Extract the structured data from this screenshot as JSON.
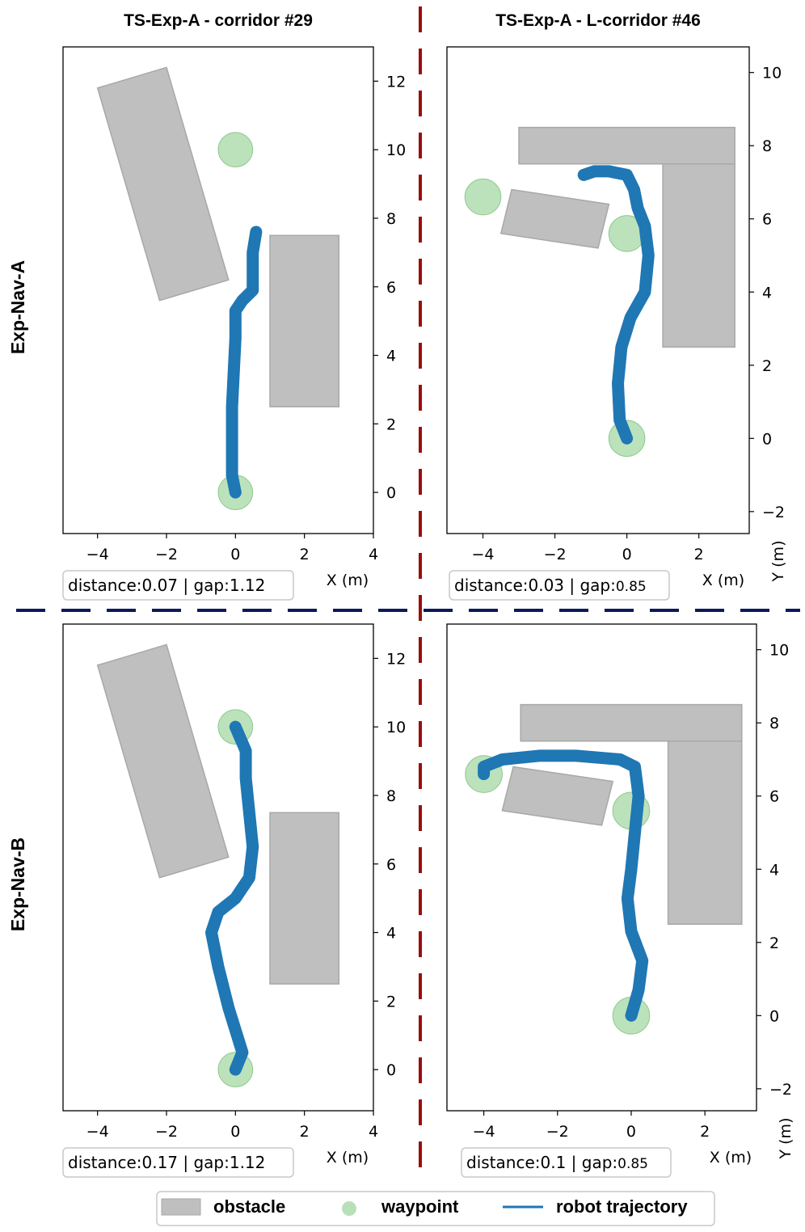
{
  "columns": [
    {
      "title": "TS-Exp-A - corridor #29"
    },
    {
      "title": "TS-Exp-A - L-corridor #46"
    }
  ],
  "rows": [
    {
      "label": "Exp-Nav-A"
    },
    {
      "label": "Exp-Nav-B"
    }
  ],
  "legend": {
    "obstacle": "obstacle",
    "waypoint": "waypoint",
    "trajectory": "robot trajectory"
  },
  "colors": {
    "obstacle_fill": "#bfbfbf",
    "obstacle_edge": "#a8a8a8",
    "waypoint": "#a6d8a6",
    "trajectory": "#1f77b4",
    "vertical_divider": "#9b0d0d",
    "horizontal_divider": "#0a1a5c"
  },
  "chart_data": [
    {
      "type": "scatter",
      "title": "TS-Exp-A - corridor #29",
      "row": "Exp-Nav-A",
      "xlabel": "X (m)",
      "ylabel": "",
      "xlim": [
        -5,
        4
      ],
      "ylim": [
        -1.2,
        13
      ],
      "xticks": [
        -4,
        -2,
        0,
        2,
        4
      ],
      "yticks": [
        0,
        2,
        4,
        6,
        8,
        10,
        12
      ],
      "tick_labels_x": [
        "−4",
        "−2",
        "0",
        "2",
        "4"
      ],
      "tick_labels_y": [
        "0",
        "2",
        "4",
        "6",
        "8",
        "10",
        "12"
      ],
      "metric": "distance:0.07 | gap:1.12",
      "obstacles": [
        [
          [
            -4,
            11.8
          ],
          [
            -2,
            12.4
          ],
          [
            -0.2,
            6.2
          ],
          [
            -2.2,
            5.6
          ]
        ],
        [
          [
            1,
            2.5
          ],
          [
            3,
            2.5
          ],
          [
            3,
            7.5
          ],
          [
            1,
            7.5
          ]
        ]
      ],
      "waypoints": [
        [
          0,
          0
        ],
        [
          0,
          10
        ]
      ],
      "trajectory": [
        [
          0,
          0
        ],
        [
          -0.1,
          0.5
        ],
        [
          -0.1,
          1.5
        ],
        [
          -0.1,
          2.5
        ],
        [
          -0.05,
          3.5
        ],
        [
          0,
          4.5
        ],
        [
          0,
          5.3
        ],
        [
          0.2,
          5.6
        ],
        [
          0.5,
          5.9
        ],
        [
          0.5,
          6.3
        ],
        [
          0.5,
          7
        ],
        [
          0.6,
          7.6
        ]
      ]
    },
    {
      "type": "scatter",
      "title": "TS-Exp-A - L-corridor #46",
      "row": "Exp-Nav-A",
      "xlabel": "X (m)",
      "ylabel": "Y (m)",
      "xlim": [
        -5,
        3.4
      ],
      "ylim": [
        -2.6,
        10.7
      ],
      "xticks": [
        -4,
        -2,
        0,
        2
      ],
      "yticks": [
        -2,
        0,
        2,
        4,
        6,
        8,
        10
      ],
      "tick_labels_x": [
        "−4",
        "−2",
        "0",
        "2"
      ],
      "tick_labels_y": [
        "−2",
        "0",
        "2",
        "4",
        "6",
        "8",
        "10"
      ],
      "metric_main": "distance:0.03 | gap:",
      "metric_value": "0.85",
      "obstacles": [
        [
          [
            -3,
            7.5
          ],
          [
            3,
            7.5
          ],
          [
            3,
            8.5
          ],
          [
            -3,
            8.5
          ]
        ],
        [
          [
            1,
            2.5
          ],
          [
            3,
            2.5
          ],
          [
            3,
            7.5
          ],
          [
            1,
            7.5
          ]
        ],
        [
          [
            -3.5,
            5.6
          ],
          [
            -0.8,
            5.2
          ],
          [
            -0.5,
            6.4
          ],
          [
            -3.2,
            6.8
          ]
        ]
      ],
      "waypoints": [
        [
          0,
          0
        ],
        [
          0,
          5.6
        ],
        [
          -4,
          6.6
        ]
      ],
      "trajectory": [
        [
          0,
          0
        ],
        [
          -0.2,
          0.5
        ],
        [
          -0.25,
          1.5
        ],
        [
          -0.15,
          2.5
        ],
        [
          0.1,
          3.3
        ],
        [
          0.5,
          4
        ],
        [
          0.6,
          5
        ],
        [
          0.5,
          5.8
        ],
        [
          0.3,
          6.3
        ],
        [
          0.2,
          6.8
        ],
        [
          0,
          7.2
        ],
        [
          -0.5,
          7.3
        ],
        [
          -0.9,
          7.3
        ],
        [
          -1.2,
          7.2
        ]
      ]
    },
    {
      "type": "scatter",
      "title": "",
      "row": "Exp-Nav-B",
      "xlabel": "X (m)",
      "ylabel": "",
      "xlim": [
        -5,
        4
      ],
      "ylim": [
        -1.2,
        13
      ],
      "xticks": [
        -4,
        -2,
        0,
        2,
        4
      ],
      "yticks": [
        0,
        2,
        4,
        6,
        8,
        10,
        12
      ],
      "tick_labels_x": [
        "−4",
        "−2",
        "0",
        "2",
        "4"
      ],
      "tick_labels_y": [
        "0",
        "2",
        "4",
        "6",
        "8",
        "10",
        "12"
      ],
      "metric": "distance:0.17 | gap:1.12",
      "obstacles": [
        [
          [
            -4,
            11.8
          ],
          [
            -2,
            12.4
          ],
          [
            -0.2,
            6.2
          ],
          [
            -2.2,
            5.6
          ]
        ],
        [
          [
            1,
            2.5
          ],
          [
            3,
            2.5
          ],
          [
            3,
            7.5
          ],
          [
            1,
            7.5
          ]
        ]
      ],
      "waypoints": [
        [
          0,
          0
        ],
        [
          0,
          10
        ]
      ],
      "trajectory": [
        [
          0,
          0
        ],
        [
          0.2,
          0.5
        ],
        [
          -0.2,
          1.8
        ],
        [
          -0.5,
          3
        ],
        [
          -0.7,
          4
        ],
        [
          -0.5,
          4.6
        ],
        [
          0,
          5
        ],
        [
          0.4,
          5.6
        ],
        [
          0.5,
          6.5
        ],
        [
          0.4,
          7.5
        ],
        [
          0.3,
          8.5
        ],
        [
          0.3,
          9.3
        ],
        [
          0,
          10
        ]
      ]
    },
    {
      "type": "scatter",
      "title": "",
      "row": "Exp-Nav-B",
      "xlabel": "X (m)",
      "ylabel": "Y (m)",
      "xlim": [
        -5,
        3.4
      ],
      "ylim": [
        -2.6,
        10.7
      ],
      "xticks": [
        -4,
        -2,
        0,
        2
      ],
      "yticks": [
        -2,
        0,
        2,
        4,
        6,
        8,
        10
      ],
      "tick_labels_x": [
        "−4",
        "−2",
        "0",
        "2"
      ],
      "tick_labels_y": [
        "−2",
        "0",
        "2",
        "4",
        "6",
        "8",
        "10"
      ],
      "metric_main": "distance:0.1 | gap:",
      "metric_value": "0.85",
      "obstacles": [
        [
          [
            -3,
            7.5
          ],
          [
            3,
            7.5
          ],
          [
            3,
            8.5
          ],
          [
            -3,
            8.5
          ]
        ],
        [
          [
            1,
            2.5
          ],
          [
            3,
            2.5
          ],
          [
            3,
            7.5
          ],
          [
            1,
            7.5
          ]
        ],
        [
          [
            -3.5,
            5.6
          ],
          [
            -0.8,
            5.2
          ],
          [
            -0.5,
            6.4
          ],
          [
            -3.2,
            6.8
          ]
        ]
      ],
      "waypoints": [
        [
          0,
          0
        ],
        [
          0,
          5.6
        ],
        [
          -4,
          6.6
        ]
      ],
      "trajectory": [
        [
          0,
          0
        ],
        [
          0.2,
          0.7
        ],
        [
          0.3,
          1.5
        ],
        [
          0,
          2.3
        ],
        [
          -0.1,
          3.2
        ],
        [
          0,
          4
        ],
        [
          0.1,
          5
        ],
        [
          0.2,
          6
        ],
        [
          0.1,
          6.8
        ],
        [
          -0.3,
          7
        ],
        [
          -1.5,
          7.1
        ],
        [
          -2.5,
          7.1
        ],
        [
          -3.5,
          7
        ],
        [
          -4,
          6.8
        ],
        [
          -4,
          6.6
        ]
      ]
    }
  ]
}
